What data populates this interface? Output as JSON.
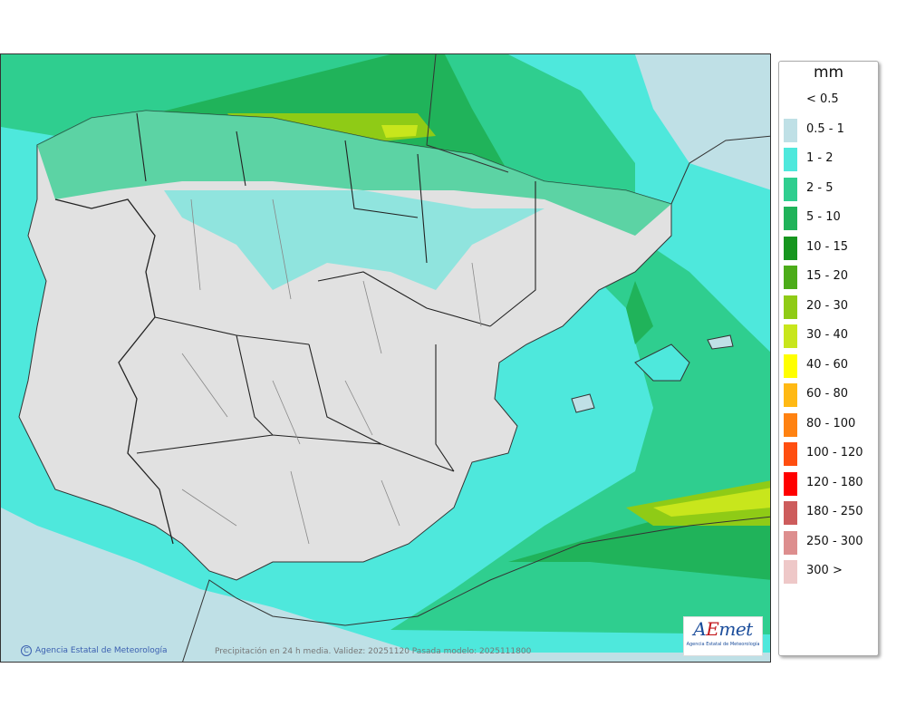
{
  "map": {
    "caption": "Precipitación en 24 h media. Validez: 20251120 Pasada modelo: 2025111800",
    "credit": "Agencia Estatal de Meteorología",
    "credit_symbol": "C",
    "logo": {
      "wordmark_a": "A",
      "wordmark_e": "E",
      "wordmark_rest": "met",
      "subtitle": "Agencia Estatal de Meteorología"
    },
    "colors": {
      "land": "#e1e1e1",
      "sea": "#ffffff",
      "border": "#222222",
      "coast": "#333333"
    }
  },
  "legend": {
    "unit": "mm",
    "items": [
      {
        "label": "< 0.5",
        "color": ""
      },
      {
        "label": "0.5 - 1",
        "color": "#bfe0e6"
      },
      {
        "label": "1 - 2",
        "color": "#4ee8dc"
      },
      {
        "label": "2 - 5",
        "color": "#2fce8f"
      },
      {
        "label": "5 - 10",
        "color": "#20b35a"
      },
      {
        "label": "10 - 15",
        "color": "#16961f"
      },
      {
        "label": "15 - 20",
        "color": "#4cac19"
      },
      {
        "label": "20 - 30",
        "color": "#8fcb16"
      },
      {
        "label": "30 - 40",
        "color": "#c8e61c"
      },
      {
        "label": "40 - 60",
        "color": "#ffff00"
      },
      {
        "label": "60 - 80",
        "color": "#ffb914"
      },
      {
        "label": "80 - 100",
        "color": "#ff8211"
      },
      {
        "label": "100 - 120",
        "color": "#ff4e10"
      },
      {
        "label": "120 - 180",
        "color": "#ff0000"
      },
      {
        "label": "180 - 250",
        "color": "#cd5c5c"
      },
      {
        "label": "250 - 300",
        "color": "#dd8e8e"
      },
      {
        "label": "300 >",
        "color": "#eec8c8"
      }
    ]
  }
}
